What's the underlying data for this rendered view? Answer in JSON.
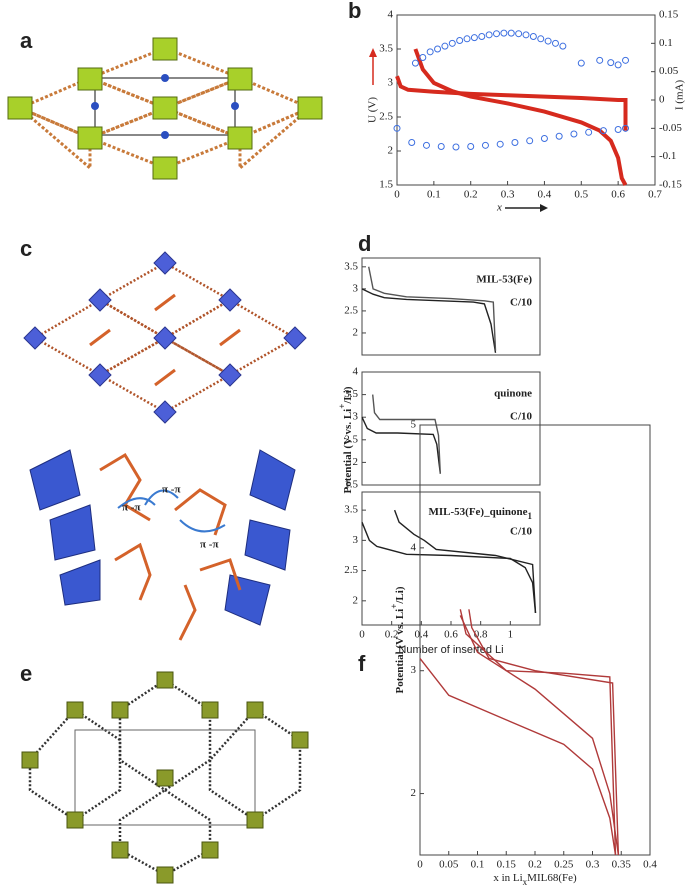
{
  "panel_labels": [
    "a",
    "b",
    "c",
    "d",
    "e",
    "f"
  ],
  "structure_labels": [
    "π -π",
    "π -π",
    "π -π"
  ],
  "chart_data": [
    {
      "type": "line",
      "xlabel": "x",
      "ylabel": "U (V)",
      "y2label": "I (mA)",
      "ylabel_color": "#d62a1e",
      "y2label_color": "#3d6fe0",
      "xlim": [
        0,
        0.7
      ],
      "xticks": [
        0,
        0.1,
        0.2,
        0.3,
        0.4,
        0.5,
        0.6,
        0.7
      ],
      "ylim": [
        1.5,
        4
      ],
      "yticks": [
        1.5,
        2,
        2.5,
        3,
        3.5,
        4
      ],
      "y2lim": [
        -0.15,
        0.15
      ],
      "y2ticks": [
        -0.15,
        -0.1,
        -0.05,
        0,
        0.05,
        0.1,
        0.15
      ],
      "series": [
        {
          "type": "line",
          "color": "#d62a1e",
          "x": [
            0,
            0.01,
            0.03,
            0.1,
            0.2,
            0.3,
            0.4,
            0.5,
            0.6,
            0.62,
            0.62
          ],
          "values": [
            3.1,
            2.95,
            2.9,
            2.87,
            2.84,
            2.82,
            2.8,
            2.78,
            2.75,
            2.75,
            2.3
          ]
        },
        {
          "type": "line",
          "color": "#d62a1e",
          "x": [
            0.05,
            0.07,
            0.1,
            0.15,
            0.2,
            0.3,
            0.4,
            0.5,
            0.55,
            0.58,
            0.6,
            0.61,
            0.62
          ],
          "values": [
            3.5,
            3.2,
            3.0,
            2.88,
            2.8,
            2.7,
            2.58,
            2.42,
            2.3,
            2.15,
            1.9,
            1.6,
            1.5
          ]
        },
        {
          "type": "scatter",
          "axis": "y2",
          "color": "#3d6fe0",
          "x": [
            0.05,
            0.07,
            0.09,
            0.11,
            0.13,
            0.15,
            0.17,
            0.19,
            0.21,
            0.23,
            0.25,
            0.27,
            0.29,
            0.31,
            0.33,
            0.35,
            0.37,
            0.39,
            0.41,
            0.43,
            0.45,
            0.5,
            0.55,
            0.58,
            0.6,
            0.62
          ],
          "values": [
            0.065,
            0.075,
            0.085,
            0.09,
            0.095,
            0.1,
            0.105,
            0.108,
            0.11,
            0.112,
            0.115,
            0.117,
            0.118,
            0.118,
            0.117,
            0.115,
            0.112,
            0.108,
            0.104,
            0.1,
            0.095,
            0.065,
            0.07,
            0.066,
            0.062,
            0.07
          ]
        },
        {
          "type": "scatter",
          "axis": "y2",
          "color": "#3d6fe0",
          "x": [
            0,
            0.04,
            0.08,
            0.12,
            0.16,
            0.2,
            0.24,
            0.28,
            0.32,
            0.36,
            0.4,
            0.44,
            0.48,
            0.52,
            0.56,
            0.6,
            0.62
          ],
          "values": [
            -0.05,
            -0.075,
            -0.08,
            -0.082,
            -0.083,
            -0.082,
            -0.08,
            -0.078,
            -0.075,
            -0.072,
            -0.068,
            -0.064,
            -0.06,
            -0.057,
            -0.054,
            -0.052,
            -0.05
          ]
        }
      ]
    },
    {
      "type": "line",
      "annotations": [
        "MIL-53(Fe)",
        "C/10"
      ],
      "xlim": [
        0,
        0.8
      ],
      "ylim": [
        1.5,
        3.7
      ],
      "yticks": [
        2,
        2.5,
        3,
        3.5
      ],
      "series": [
        {
          "type": "line",
          "color": "#222222",
          "x": [
            0,
            0.05,
            0.1,
            0.2,
            0.3,
            0.4,
            0.5,
            0.55,
            0.58,
            0.6
          ],
          "values": [
            3.0,
            2.88,
            2.8,
            2.76,
            2.74,
            2.72,
            2.7,
            2.66,
            2.2,
            1.55
          ]
        },
        {
          "type": "line",
          "color": "#555555",
          "x": [
            0.6,
            0.59,
            0.55,
            0.4,
            0.2,
            0.1,
            0.05,
            0.03
          ],
          "values": [
            1.6,
            2.7,
            2.73,
            2.78,
            2.82,
            2.9,
            3.0,
            3.5
          ]
        }
      ]
    },
    {
      "type": "line",
      "annotations": [
        "quinone",
        "C/10"
      ],
      "ylabel": [
        "Potential (V vs. Li",
        "+",
        "/Li)"
      ],
      "xlim": [
        0,
        1
      ],
      "ylim": [
        1.5,
        4
      ],
      "yticks": [
        1.5,
        2,
        2.5,
        3,
        3.5,
        4
      ],
      "series": [
        {
          "type": "line",
          "color": "#222222",
          "x": [
            0,
            0.03,
            0.08,
            0.2,
            0.4,
            0.42,
            0.44
          ],
          "values": [
            3.0,
            2.75,
            2.65,
            2.65,
            2.62,
            2.4,
            1.75
          ]
        },
        {
          "type": "line",
          "color": "#555555",
          "x": [
            0.44,
            0.43,
            0.41,
            0.3,
            0.1,
            0.07,
            0.06
          ],
          "values": [
            1.75,
            2.6,
            2.95,
            2.95,
            2.95,
            3.1,
            3.5
          ]
        }
      ]
    },
    {
      "type": "line",
      "annotations": [
        "MIL-53(Fe)_quinone",
        "1",
        "C/10"
      ],
      "xlabel": "Number of inserted Li",
      "xlim": [
        0,
        1.2
      ],
      "xticks": [
        0,
        0.2,
        0.4,
        0.6,
        0.8,
        1
      ],
      "ylim": [
        1.6,
        3.8
      ],
      "yticks": [
        2,
        2.5,
        3,
        3.5
      ],
      "series": [
        {
          "type": "line",
          "color": "#222222",
          "x": [
            0,
            0.05,
            0.1,
            0.3,
            0.6,
            1.0,
            1.1,
            1.15,
            1.17
          ],
          "values": [
            3.3,
            3.0,
            2.9,
            2.77,
            2.75,
            2.7,
            2.55,
            2.3,
            1.8
          ]
        },
        {
          "type": "line",
          "color": "#222222",
          "x": [
            1.17,
            1.15,
            0.9,
            0.5,
            0.42,
            0.35,
            0.25,
            0.22
          ],
          "values": [
            1.8,
            2.6,
            2.75,
            2.85,
            3.0,
            3.1,
            3.3,
            3.5
          ]
        }
      ]
    },
    {
      "type": "line",
      "xlabel": [
        "x in Li",
        "x",
        "MIL68(Fe)"
      ],
      "ylabel": [
        "Potential (V vs. Li",
        "+",
        "/Li)"
      ],
      "xlim": [
        0,
        0.4
      ],
      "xticks": [
        0,
        0.05,
        0.1,
        0.15,
        0.2,
        0.25,
        0.3,
        0.35,
        0.4
      ],
      "ylim": [
        1.5,
        5
      ],
      "yticks": [
        2,
        3,
        4,
        5
      ],
      "series": [
        {
          "type": "line",
          "color": "#b03a3a",
          "x": [
            0,
            0.05,
            0.15,
            0.25,
            0.3,
            0.33,
            0.34
          ],
          "values": [
            3.1,
            2.8,
            2.6,
            2.4,
            2.2,
            1.8,
            1.5
          ]
        },
        {
          "type": "line",
          "color": "#b03a3a",
          "x": [
            0.34,
            0.33,
            0.25,
            0.15,
            0.08,
            0.07
          ],
          "values": [
            1.5,
            2.95,
            2.98,
            3.0,
            3.3,
            3.5
          ]
        },
        {
          "type": "line",
          "color": "#b03a3a",
          "x": [
            0.07,
            0.1,
            0.2,
            0.3,
            0.33,
            0.345
          ],
          "values": [
            3.45,
            3.15,
            2.85,
            2.45,
            2.0,
            1.5
          ]
        },
        {
          "type": "line",
          "color": "#b03a3a",
          "x": [
            0.345,
            0.335,
            0.2,
            0.12,
            0.09,
            0.085
          ],
          "values": [
            1.5,
            2.9,
            3.0,
            3.1,
            3.35,
            3.5
          ]
        }
      ]
    }
  ]
}
